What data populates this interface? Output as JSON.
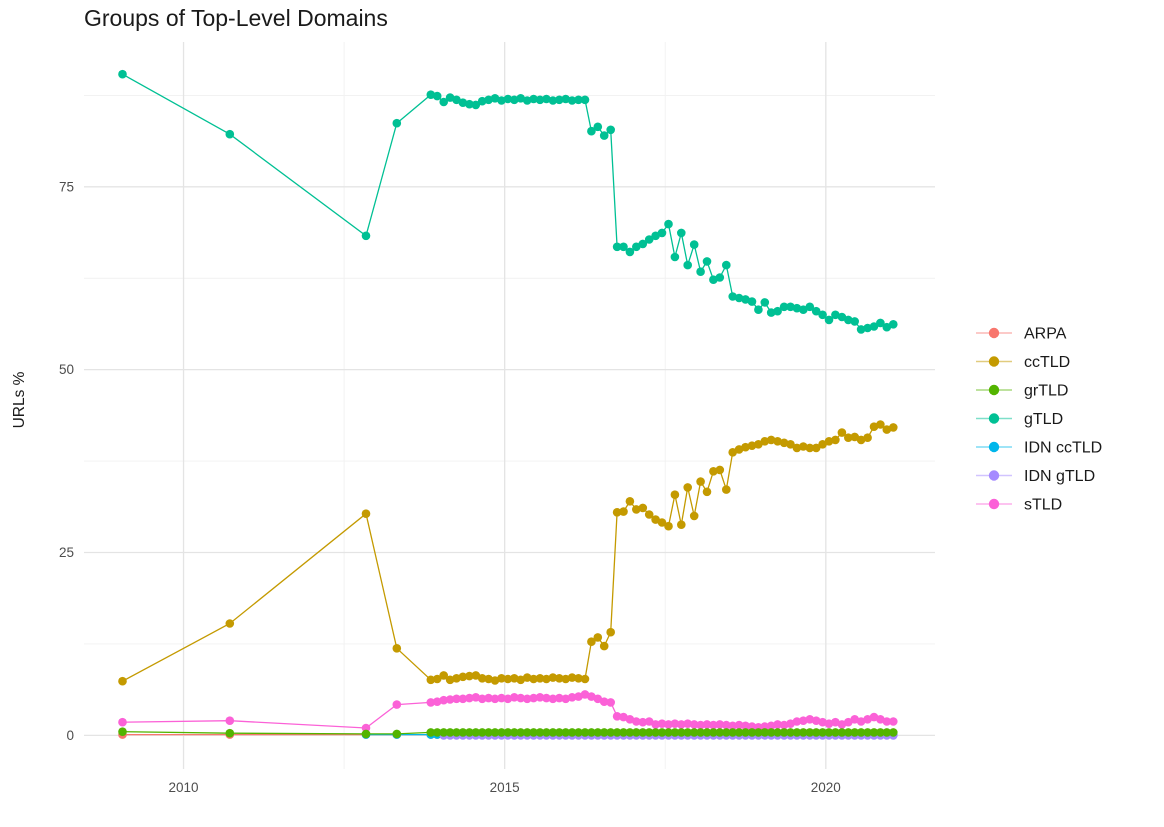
{
  "chart_data": {
    "type": "line",
    "title": "Groups of Top-Level Domains",
    "xlabel": "",
    "ylabel": "URLs %",
    "x_ticks": [
      2010,
      2015,
      2020
    ],
    "x_tick_labels": [
      "2010",
      "2015",
      "2020"
    ],
    "y_ticks": [
      0,
      25,
      50,
      75
    ],
    "y_tick_labels": [
      "0",
      "25",
      "50",
      "75"
    ],
    "xlim": [
      2008.45,
      2021.7
    ],
    "ylim": [
      -4.6,
      94.8
    ],
    "grid": true,
    "legend_position": "right",
    "grid_major_color": "#e4e4e4",
    "grid_minor_color": "#f1f1f1",
    "tick_label_color": "#4d4d4d",
    "text_color": "#1a1a1a",
    "draw_order": [
      "ARPA",
      "IDN ccTLD",
      "IDN gTLD",
      "ccTLD",
      "gTLD",
      "sTLD",
      "grTLD"
    ],
    "x": [
      2009.05,
      2010.72,
      2012.84,
      2013.32,
      2013.85,
      2013.95,
      2014.05,
      2014.15,
      2014.25,
      2014.35,
      2014.45,
      2014.55,
      2014.65,
      2014.75,
      2014.85,
      2014.95,
      2015.05,
      2015.15,
      2015.25,
      2015.35,
      2015.45,
      2015.55,
      2015.65,
      2015.75,
      2015.85,
      2015.95,
      2016.05,
      2016.15,
      2016.25,
      2016.35,
      2016.45,
      2016.55,
      2016.65,
      2016.75,
      2016.85,
      2016.95,
      2017.05,
      2017.15,
      2017.25,
      2017.35,
      2017.45,
      2017.55,
      2017.65,
      2017.75,
      2017.85,
      2017.95,
      2018.05,
      2018.15,
      2018.25,
      2018.35,
      2018.45,
      2018.55,
      2018.65,
      2018.75,
      2018.85,
      2018.95,
      2019.05,
      2019.15,
      2019.25,
      2019.35,
      2019.45,
      2019.55,
      2019.65,
      2019.75,
      2019.85,
      2019.95,
      2020.05,
      2020.15,
      2020.25,
      2020.35,
      2020.45,
      2020.55,
      2020.65,
      2020.75,
      2020.85,
      2020.95,
      2021.05
    ],
    "series": [
      {
        "name": "ARPA",
        "color": "#F8766D",
        "values": [
          0.1,
          0.1,
          0.1,
          0.1,
          0.1,
          0.1,
          0.1,
          0.1,
          0.1,
          0.1,
          0.1,
          0.1,
          0.1,
          0.1,
          0.1,
          0.1,
          0.1,
          0.1,
          0.1,
          0.1,
          0.1,
          0.1,
          0.1,
          0.1,
          0.1,
          0.1,
          0.1,
          0.1,
          0.1,
          0.1,
          0.1,
          0.1,
          0.1,
          0.1,
          0.1,
          0.1,
          0.1,
          0.1,
          0.1,
          0.1,
          0.1,
          0.1,
          0.1,
          0.1,
          0.1,
          0.1,
          0.1,
          0.1,
          0.1,
          0.1,
          0.1,
          0.1,
          0.1,
          0.1,
          0.1,
          0.1,
          0.1,
          0.1,
          0.1,
          0.1,
          0.1,
          0.1,
          0.1,
          0.1,
          0.1,
          0.1,
          0.1,
          0.1,
          0.1,
          0.1,
          0.1,
          0.1,
          0.1,
          0.1,
          0.1,
          0.1,
          0.1
        ]
      },
      {
        "name": "ccTLD",
        "color": "#C49A00",
        "values": [
          7.4,
          15.3,
          30.3,
          11.9,
          7.6,
          7.7,
          8.2,
          7.6,
          7.8,
          8.0,
          8.1,
          8.2,
          7.8,
          7.7,
          7.5,
          7.8,
          7.7,
          7.8,
          7.6,
          7.9,
          7.7,
          7.8,
          7.7,
          7.9,
          7.8,
          7.7,
          7.9,
          7.8,
          7.7,
          12.8,
          13.4,
          12.2,
          14.1,
          30.5,
          30.6,
          32.0,
          30.9,
          31.1,
          30.2,
          29.5,
          29.1,
          28.6,
          32.9,
          28.8,
          33.9,
          30.0,
          34.7,
          33.3,
          36.1,
          36.3,
          33.6,
          38.7,
          39.1,
          39.4,
          39.6,
          39.8,
          40.2,
          40.4,
          40.2,
          40.0,
          39.8,
          39.3,
          39.5,
          39.3,
          39.3,
          39.8,
          40.2,
          40.4,
          41.4,
          40.7,
          40.8,
          40.4,
          40.7,
          42.2,
          42.5,
          41.8,
          42.1
        ]
      },
      {
        "name": "grTLD",
        "color": "#53B400",
        "values": [
          0.5,
          0.3,
          0.2,
          0.2,
          0.4,
          0.4,
          0.4,
          0.4,
          0.4,
          0.4,
          0.4,
          0.4,
          0.4,
          0.4,
          0.4,
          0.4,
          0.4,
          0.4,
          0.4,
          0.4,
          0.4,
          0.4,
          0.4,
          0.4,
          0.4,
          0.4,
          0.4,
          0.4,
          0.4,
          0.4,
          0.4,
          0.4,
          0.4,
          0.4,
          0.4,
          0.4,
          0.4,
          0.4,
          0.4,
          0.4,
          0.4,
          0.4,
          0.4,
          0.4,
          0.4,
          0.4,
          0.4,
          0.4,
          0.4,
          0.4,
          0.4,
          0.4,
          0.4,
          0.4,
          0.4,
          0.4,
          0.4,
          0.4,
          0.4,
          0.4,
          0.4,
          0.4,
          0.4,
          0.4,
          0.4,
          0.4,
          0.4,
          0.4,
          0.4,
          0.4,
          0.4,
          0.4,
          0.4,
          0.4,
          0.4,
          0.4,
          0.4
        ]
      },
      {
        "name": "gTLD",
        "color": "#00C094",
        "values": [
          90.4,
          82.2,
          68.3,
          83.7,
          87.6,
          87.4,
          86.6,
          87.2,
          86.9,
          86.5,
          86.3,
          86.2,
          86.7,
          86.9,
          87.1,
          86.8,
          87.0,
          86.9,
          87.1,
          86.8,
          87.0,
          86.9,
          87.0,
          86.8,
          86.9,
          87.0,
          86.8,
          86.9,
          86.9,
          82.6,
          83.2,
          82.0,
          82.8,
          66.8,
          66.8,
          66.1,
          66.8,
          67.2,
          67.8,
          68.3,
          68.7,
          69.9,
          65.4,
          68.7,
          64.3,
          67.1,
          63.4,
          64.8,
          62.3,
          62.6,
          64.3,
          60.0,
          59.8,
          59.6,
          59.3,
          58.2,
          59.2,
          57.8,
          58.0,
          58.6,
          58.6,
          58.4,
          58.2,
          58.6,
          58.0,
          57.5,
          56.8,
          57.5,
          57.2,
          56.8,
          56.6,
          55.5,
          55.7,
          55.9,
          56.4,
          55.8,
          56.2
        ]
      },
      {
        "name": "IDN ccTLD",
        "color": "#00B6EB",
        "values": [
          null,
          null,
          0.1,
          0.1,
          0.1,
          0.1,
          0.1,
          0.1,
          0.1,
          0.1,
          0.1,
          0.1,
          0.1,
          0.1,
          0.1,
          0.1,
          0.1,
          0.1,
          0.1,
          0.1,
          0.1,
          0.1,
          0.1,
          0.1,
          0.1,
          0.1,
          0.1,
          0.1,
          0.1,
          0.1,
          0.1,
          0.1,
          0.1,
          0.1,
          0.1,
          0.1,
          0.1,
          0.1,
          0.1,
          0.1,
          0.1,
          0.1,
          0.1,
          0.1,
          0.1,
          0.1,
          0.1,
          0.1,
          0.1,
          0.1,
          0.1,
          0.1,
          0.1,
          0.1,
          0.1,
          0.1,
          0.1,
          0.1,
          0.1,
          0.1,
          0.1,
          0.1,
          0.1,
          0.1,
          0.1,
          0.1,
          0.1,
          0.1,
          0.1,
          0.1,
          0.1,
          0.1,
          0.1,
          0.1,
          0.1,
          0.1,
          0.1
        ]
      },
      {
        "name": "IDN gTLD",
        "color": "#A58AFF",
        "values": [
          null,
          null,
          null,
          null,
          null,
          null,
          0.0,
          0.0,
          0.0,
          0.0,
          0.0,
          0.0,
          0.0,
          0.0,
          0.0,
          0.0,
          0.0,
          0.0,
          0.0,
          0.0,
          0.0,
          0.0,
          0.0,
          0.0,
          0.0,
          0.0,
          0.0,
          0.0,
          0.0,
          0.0,
          0.0,
          0.0,
          0.0,
          0.0,
          0.0,
          0.0,
          0.0,
          0.0,
          0.0,
          0.0,
          0.0,
          0.0,
          0.0,
          0.0,
          0.0,
          0.0,
          0.0,
          0.0,
          0.0,
          0.0,
          0.0,
          0.0,
          0.0,
          0.0,
          0.0,
          0.0,
          0.0,
          0.0,
          0.0,
          0.0,
          0.0,
          0.0,
          0.0,
          0.0,
          0.0,
          0.0,
          0.0,
          0.0,
          0.0,
          0.0,
          0.0,
          0.0,
          0.0,
          0.0,
          0.0,
          0.0,
          0.0
        ]
      },
      {
        "name": "sTLD",
        "color": "#FB61D7",
        "values": [
          1.8,
          2.0,
          1.0,
          4.2,
          4.5,
          4.6,
          4.8,
          4.9,
          5.0,
          5.0,
          5.1,
          5.2,
          5.0,
          5.1,
          5.0,
          5.1,
          5.0,
          5.2,
          5.1,
          5.0,
          5.1,
          5.2,
          5.1,
          5.0,
          5.1,
          5.0,
          5.2,
          5.3,
          5.6,
          5.3,
          5.0,
          4.6,
          4.5,
          2.6,
          2.5,
          2.2,
          1.9,
          1.8,
          1.9,
          1.5,
          1.6,
          1.5,
          1.6,
          1.5,
          1.6,
          1.5,
          1.4,
          1.5,
          1.4,
          1.5,
          1.4,
          1.3,
          1.4,
          1.3,
          1.2,
          1.1,
          1.2,
          1.3,
          1.5,
          1.4,
          1.6,
          1.9,
          2.0,
          2.2,
          2.0,
          1.8,
          1.6,
          1.8,
          1.5,
          1.8,
          2.2,
          1.9,
          2.2,
          2.5,
          2.2,
          1.9,
          1.9
        ]
      }
    ]
  }
}
